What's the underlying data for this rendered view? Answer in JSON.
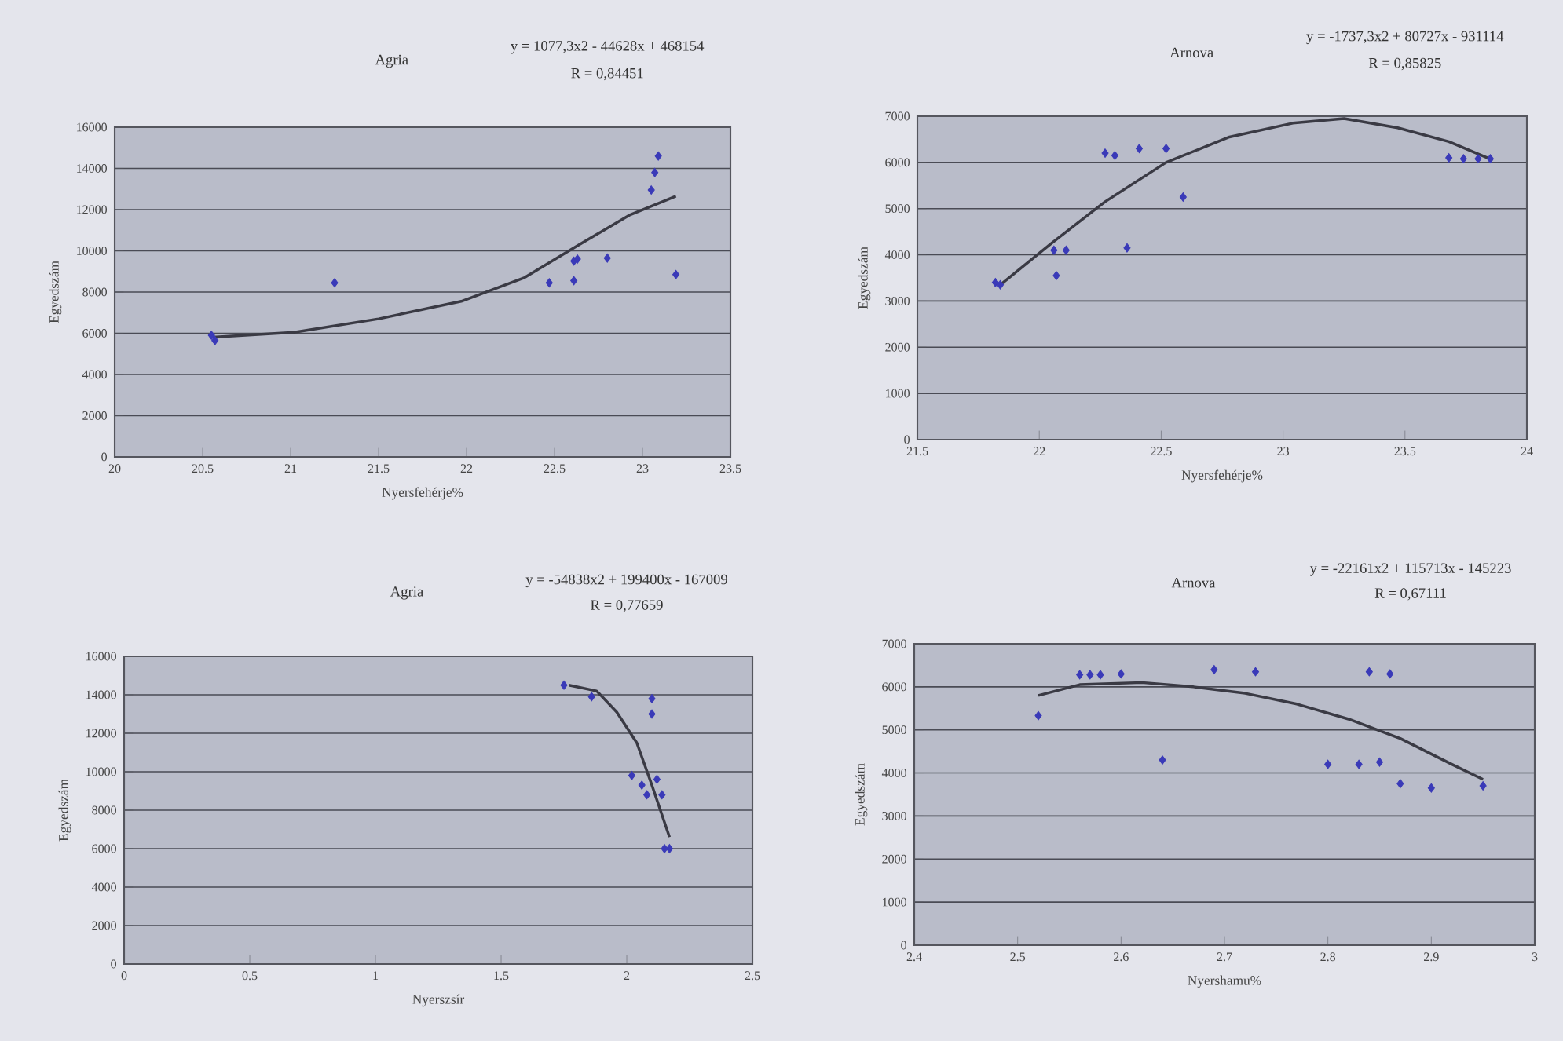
{
  "chart_data": [
    {
      "type": "scatter",
      "title": "Agria",
      "annotations": [
        "y = 1077,3x2 - 44628x + 468154",
        "R = 0,84451"
      ],
      "xlabel": "Nyersfehérje%",
      "ylabel": "Egyedszám",
      "xlim": [
        20,
        23.5
      ],
      "xticks": [
        20,
        20.5,
        21,
        21.5,
        22,
        22.5,
        23,
        23.5
      ],
      "ylim": [
        0,
        16000
      ],
      "yticks": [
        0,
        2000,
        4000,
        6000,
        8000,
        10000,
        12000,
        14000,
        16000
      ],
      "grid": "y",
      "series": [
        {
          "marker": "diamond",
          "color": "#3a3ab8",
          "x": [
            20.55,
            20.57,
            21.25,
            22.47,
            22.61,
            22.61,
            22.63,
            22.8,
            23.05,
            23.07,
            23.09,
            23.19
          ],
          "values": [
            5900,
            5650,
            8450,
            8450,
            9500,
            8550,
            9600,
            9650,
            12950,
            13800,
            14600,
            8850
          ]
        },
        {
          "type": "line",
          "marker": "none",
          "color": "#3a3a44",
          "x": [
            20.54,
            21.02,
            21.5,
            21.97,
            22.33,
            22.63,
            22.93,
            23.19
          ],
          "values": [
            5800,
            6050,
            6700,
            7550,
            8700,
            10250,
            11750,
            12650
          ]
        }
      ]
    },
    {
      "type": "scatter",
      "title": "Arnova",
      "annotations": [
        "y = -1737,3x2 + 80727x - 931114",
        "R = 0,85825"
      ],
      "xlabel": "Nyersfehérje%",
      "ylabel": "Egyedszám",
      "xlim": [
        21.5,
        24
      ],
      "xticks": [
        21.5,
        22,
        22.5,
        23,
        23.5,
        24
      ],
      "ylim": [
        0,
        7000
      ],
      "yticks": [
        0,
        1000,
        2000,
        3000,
        4000,
        5000,
        6000,
        7000
      ],
      "grid": "y",
      "series": [
        {
          "marker": "diamond",
          "color": "#3a3ab8",
          "x": [
            21.82,
            21.84,
            22.07,
            22.06,
            22.11,
            22.27,
            22.31,
            22.41,
            22.52,
            22.59,
            22.36,
            23.68,
            23.74,
            23.8,
            23.85
          ],
          "values": [
            3400,
            3350,
            3550,
            4100,
            4100,
            6200,
            6150,
            6300,
            6300,
            5250,
            4150,
            6100,
            6080,
            6080,
            6080
          ]
        },
        {
          "type": "line",
          "marker": "none",
          "color": "#3a3a44",
          "x": [
            21.84,
            22.05,
            22.27,
            22.52,
            22.78,
            23.04,
            23.25,
            23.47,
            23.68,
            23.86
          ],
          "values": [
            3350,
            4250,
            5150,
            6000,
            6550,
            6850,
            6950,
            6750,
            6450,
            6050
          ]
        }
      ]
    },
    {
      "type": "scatter",
      "title": "Agria",
      "annotations": [
        "y = -54838x2 + 199400x - 167009",
        "R = 0,77659"
      ],
      "xlabel": "Nyerszsír",
      "ylabel": "Egyedszám",
      "xlim": [
        0,
        2.5
      ],
      "xticks": [
        0,
        0.5,
        1,
        1.5,
        2,
        2.5
      ],
      "ylim": [
        0,
        16000
      ],
      "yticks": [
        0,
        2000,
        4000,
        6000,
        8000,
        10000,
        12000,
        14000,
        16000
      ],
      "grid": "y",
      "series": [
        {
          "marker": "diamond",
          "color": "#3a3ab8",
          "x": [
            1.75,
            1.86,
            2.1,
            2.1,
            2.02,
            2.06,
            2.08,
            2.12,
            2.14,
            2.15,
            2.17
          ],
          "values": [
            14500,
            13900,
            13800,
            13000,
            9800,
            9300,
            8800,
            9600,
            8800,
            6000,
            6000
          ]
        },
        {
          "type": "line",
          "marker": "none",
          "color": "#3a3a44",
          "x": [
            1.77,
            1.88,
            1.96,
            2.04,
            2.1,
            2.17
          ],
          "values": [
            14500,
            14200,
            13100,
            11500,
            9300,
            6600
          ]
        }
      ]
    },
    {
      "type": "scatter",
      "title": "Arnova",
      "annotations": [
        "y = -22161x2 + 115713x - 145223",
        "R = 0,67111"
      ],
      "xlabel": "Nyershamu%",
      "ylabel": "Egyedszám",
      "xlim": [
        2.4,
        3
      ],
      "xticks": [
        2.4,
        2.5,
        2.6,
        2.7,
        2.8,
        2.9,
        3
      ],
      "ylim": [
        0,
        7000
      ],
      "yticks": [
        0,
        1000,
        2000,
        3000,
        4000,
        5000,
        6000,
        7000
      ],
      "grid": "y",
      "series": [
        {
          "marker": "diamond",
          "color": "#3a3ab8",
          "x": [
            2.52,
            2.56,
            2.57,
            2.58,
            2.6,
            2.64,
            2.69,
            2.73,
            2.8,
            2.83,
            2.85,
            2.84,
            2.86,
            2.87,
            2.9,
            2.95
          ],
          "values": [
            5330,
            6280,
            6280,
            6280,
            6300,
            4300,
            6400,
            6350,
            4200,
            4200,
            4250,
            6350,
            6300,
            3750,
            3650,
            3700
          ]
        },
        {
          "type": "line",
          "marker": "none",
          "color": "#3a3a44",
          "x": [
            2.52,
            2.56,
            2.62,
            2.67,
            2.72,
            2.77,
            2.82,
            2.87,
            2.92,
            2.95
          ],
          "values": [
            5800,
            6050,
            6100,
            6000,
            5850,
            5600,
            5250,
            4800,
            4200,
            3850
          ]
        }
      ]
    }
  ]
}
